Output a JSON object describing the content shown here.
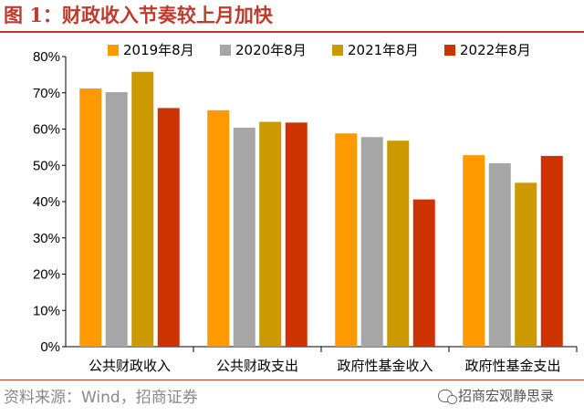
{
  "header": {
    "title": "图 1：财政收入节奏较上月加快"
  },
  "footer": {
    "source": "资料来源：Wind，招商证券",
    "watermark": "招商宏观静思录"
  },
  "chart_data": {
    "type": "bar",
    "categories": [
      "公共财政收入",
      "公共财政支出",
      "政府性基金收入",
      "政府性基金支出"
    ],
    "series": [
      {
        "name": "2019年8月",
        "color": "#ff9900",
        "values": [
          71.2,
          65.2,
          58.8,
          52.8
        ]
      },
      {
        "name": "2020年8月",
        "color": "#a6a6a6",
        "values": [
          70.2,
          60.4,
          57.8,
          50.6
        ]
      },
      {
        "name": "2021年8月",
        "color": "#cc9900",
        "values": [
          75.8,
          62.0,
          56.8,
          45.2
        ]
      },
      {
        "name": "2022年8月",
        "color": "#cc3300",
        "values": [
          65.8,
          61.8,
          40.6,
          52.6
        ]
      }
    ],
    "yticks": [
      "0%",
      "10%",
      "20%",
      "30%",
      "40%",
      "50%",
      "60%",
      "70%",
      "80%"
    ],
    "ylim": [
      0,
      80
    ],
    "legend_position": "top",
    "grid": false
  }
}
